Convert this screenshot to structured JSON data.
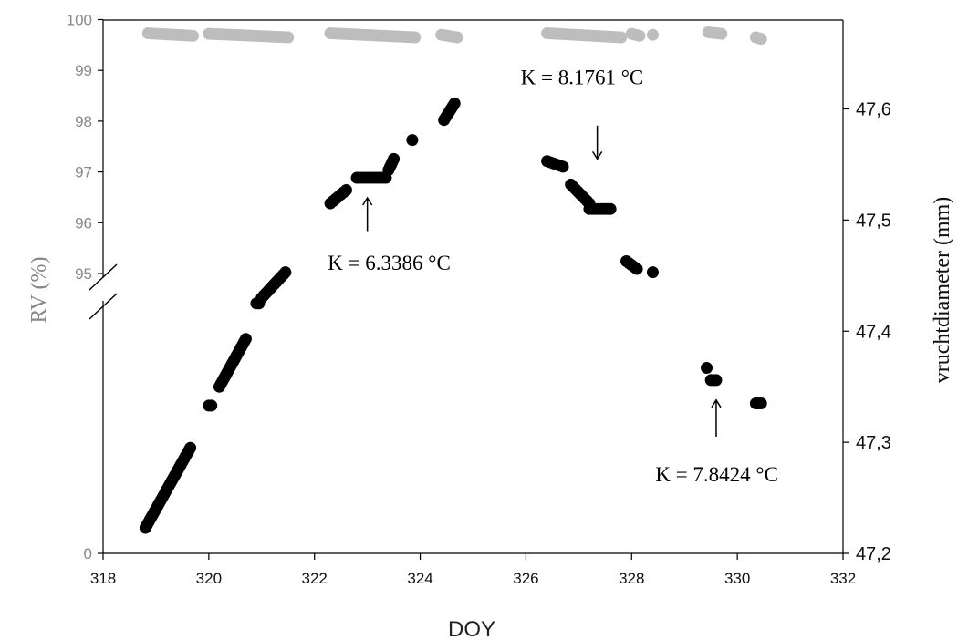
{
  "chart_data": {
    "type": "scatter",
    "xlabel": "DOY",
    "ylabel_left": "RV (%)",
    "ylabel_right": "vruchtdiameter (mm)",
    "xlim": [
      318,
      332
    ],
    "x_ticks": [
      {
        "value": 318,
        "label": "318"
      },
      {
        "value": 320,
        "label": "320"
      },
      {
        "value": 322,
        "label": "322"
      },
      {
        "value": 324,
        "label": "324"
      },
      {
        "value": 326,
        "label": "326"
      },
      {
        "value": 328,
        "label": "328"
      },
      {
        "value": 330,
        "label": "330"
      },
      {
        "value": 332,
        "label": "332"
      }
    ],
    "left_axis": {
      "broken": true,
      "break_after": 95,
      "ticks": [
        {
          "value": 0,
          "label": "0"
        },
        {
          "value": 95,
          "label": "95"
        },
        {
          "value": 96,
          "label": "96"
        },
        {
          "value": 97,
          "label": "97"
        },
        {
          "value": 98,
          "label": "98"
        },
        {
          "value": 99,
          "label": "99"
        },
        {
          "value": 100,
          "label": "100"
        }
      ]
    },
    "right_axis": {
      "ylim": [
        47.2,
        47.68
      ],
      "ticks": [
        {
          "value": 47.2,
          "label": "47,2"
        },
        {
          "value": 47.3,
          "label": "47,3"
        },
        {
          "value": 47.4,
          "label": "47,4"
        },
        {
          "value": 47.5,
          "label": "47,5"
        },
        {
          "value": 47.6,
          "label": "47,6"
        }
      ]
    },
    "colors": {
      "rv": "#bdbdbd",
      "diameter": "#000000",
      "axis": "#000000",
      "left_tick_text": "#888888"
    },
    "series": [
      {
        "axis": "left",
        "segments": [
          {
            "x0": 318.85,
            "x1": 319.7,
            "y0": 99.73,
            "y1": 99.68
          },
          {
            "x0": 320.0,
            "x1": 321.5,
            "y0": 99.72,
            "y1": 99.65
          },
          {
            "x0": 322.3,
            "x1": 323.9,
            "y0": 99.73,
            "y1": 99.65
          },
          {
            "x0": 324.4,
            "x1": 324.7,
            "y0": 99.7,
            "y1": 99.65
          },
          {
            "x0": 326.4,
            "x1": 327.8,
            "y0": 99.73,
            "y1": 99.65
          },
          {
            "x0": 328.0,
            "x1": 328.15,
            "y0": 99.72,
            "y1": 99.68
          },
          {
            "x0": 329.45,
            "x1": 329.7,
            "y0": 99.75,
            "y1": 99.72
          },
          {
            "x0": 330.35,
            "x1": 330.45,
            "y0": 99.65,
            "y1": 99.62
          }
        ],
        "points": [
          [
            328.4,
            99.7
          ]
        ]
      },
      {
        "axis": "right",
        "segments": [
          {
            "x0": 318.8,
            "x1": 319.65,
            "y0": 47.223,
            "y1": 47.295
          },
          {
            "x0": 320.0,
            "x1": 320.05,
            "y0": 47.333,
            "y1": 47.333
          },
          {
            "x0": 320.2,
            "x1": 320.7,
            "y0": 47.35,
            "y1": 47.393
          },
          {
            "x0": 320.9,
            "x1": 320.95,
            "y0": 47.425,
            "y1": 47.425
          },
          {
            "x0": 321.0,
            "x1": 321.45,
            "y0": 47.43,
            "y1": 47.453
          },
          {
            "x0": 322.3,
            "x1": 322.6,
            "y0": 47.515,
            "y1": 47.527
          },
          {
            "x0": 322.8,
            "x1": 323.35,
            "y0": 47.538,
            "y1": 47.538
          },
          {
            "x0": 323.4,
            "x1": 323.5,
            "y0": 47.545,
            "y1": 47.555
          },
          {
            "x0": 324.45,
            "x1": 324.65,
            "y0": 47.59,
            "y1": 47.605
          },
          {
            "x0": 326.4,
            "x1": 326.7,
            "y0": 47.553,
            "y1": 47.548
          },
          {
            "x0": 326.85,
            "x1": 327.2,
            "y0": 47.532,
            "y1": 47.515
          },
          {
            "x0": 327.2,
            "x1": 327.6,
            "y0": 47.51,
            "y1": 47.51
          },
          {
            "x0": 327.9,
            "x1": 328.1,
            "y0": 47.463,
            "y1": 47.456
          },
          {
            "x0": 329.5,
            "x1": 329.6,
            "y0": 47.356,
            "y1": 47.356
          },
          {
            "x0": 330.35,
            "x1": 330.45,
            "y0": 47.335,
            "y1": 47.335
          }
        ],
        "points": [
          [
            323.85,
            47.572
          ],
          [
            328.4,
            47.453
          ],
          [
            329.42,
            47.367
          ]
        ]
      }
    ],
    "annotations": [
      {
        "text": "K = 6.3386 °C",
        "x": 322.25,
        "y": 47.455,
        "arrow": {
          "x": 323.0,
          "y0": 47.49,
          "y1": 47.52
        }
      },
      {
        "text": "K = 8.1761 °C",
        "x": 325.9,
        "y": 47.622,
        "arrow": {
          "x": 327.35,
          "y0": 47.585,
          "y1": 47.555
        }
      },
      {
        "text": "K = 7.8424 °C",
        "x": 328.45,
        "y": 47.265,
        "arrow": {
          "x": 329.6,
          "y0": 47.305,
          "y1": 47.338
        }
      }
    ]
  }
}
